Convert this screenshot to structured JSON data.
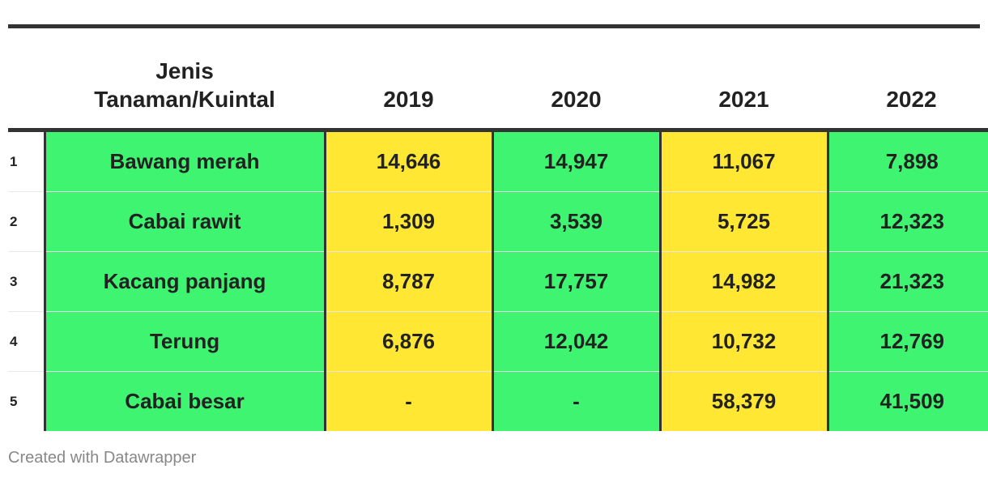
{
  "chart_data": {
    "type": "table",
    "columns": [
      "Jenis Tanaman/Kuintal",
      "2019",
      "2020",
      "2021",
      "2022"
    ],
    "header_lines": [
      "Jenis",
      "Tanaman/Kuintal"
    ],
    "rows": [
      {
        "rank": "1",
        "name": "Bawang merah",
        "values": [
          "14,646",
          "14,947",
          "11,067",
          "7,898"
        ]
      },
      {
        "rank": "2",
        "name": "Cabai rawit",
        "values": [
          "1,309",
          "3,539",
          "5,725",
          "12,323"
        ]
      },
      {
        "rank": "3",
        "name": "Kacang panjang",
        "values": [
          "8,787",
          "17,757",
          "14,982",
          "21,323"
        ]
      },
      {
        "rank": "4",
        "name": "Terung",
        "values": [
          "6,876",
          "12,042",
          "10,732",
          "12,769"
        ]
      },
      {
        "rank": "5",
        "name": "Cabai besar",
        "values": [
          "-",
          "-",
          "58,379",
          "41,509"
        ]
      }
    ],
    "column_colors": [
      "#3ef471",
      "#ffe733",
      "#3ef471",
      "#ffe733",
      "#3ef471"
    ]
  },
  "footer": {
    "credit": "Created with Datawrapper"
  }
}
